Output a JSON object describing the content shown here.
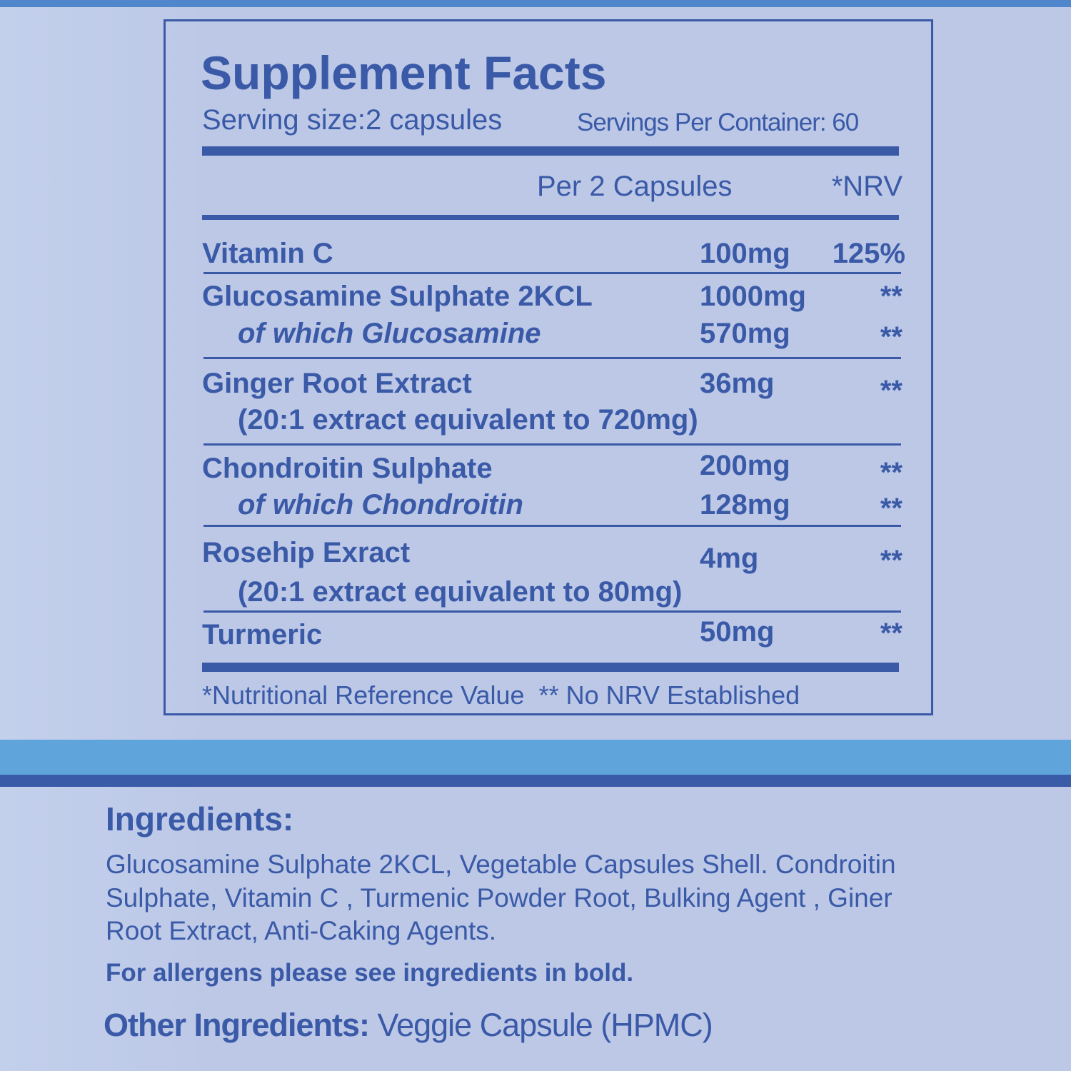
{
  "facts": {
    "title": "Supplement Facts",
    "serving_size": "Serving size:2 capsules",
    "servings_per_container": "Servings Per Container: 60",
    "col_amount": "Per 2 Capsules",
    "col_nrv": "*NRV",
    "rows": [
      {
        "name": "Vitamin C",
        "amount": "100mg",
        "nrv": "125%"
      },
      {
        "name": "Glucosamine Sulphate 2KCL",
        "amount": "1000mg",
        "nrv": "**"
      },
      {
        "name": "of which Glucosamine",
        "amount": "570mg",
        "nrv": "**"
      },
      {
        "name": "Ginger Root Extract",
        "amount": "36mg",
        "nrv": "**"
      },
      {
        "name": "(20:1 extract equivalent to 720mg)"
      },
      {
        "name": "Chondroitin Sulphate",
        "amount": "200mg",
        "nrv": "**"
      },
      {
        "name": "of which Chondroitin",
        "amount": "128mg",
        "nrv": "**"
      },
      {
        "name": "Rosehip Exract",
        "amount": "4mg",
        "nrv": "**"
      },
      {
        "name": "(20:1 extract equivalent to 80mg)"
      },
      {
        "name": "Turmeric",
        "amount": "50mg",
        "nrv": "**"
      }
    ],
    "footnote": "*Nutritional Reference Value  ** No NRV Established"
  },
  "ingredients": {
    "heading": "Ingredients:",
    "lines": [
      "Glucosamine Sulphate 2KCL, Vegetable Capsules Shell. Condroitin",
      "Sulphate, Vitamin C , Turmenic Powder Root, Bulking Agent , Giner",
      "Root Extract, Anti-Caking Agents."
    ],
    "allergens": "For allergens please see ingredients in bold.",
    "other_label": "Other Ingredients:",
    "other_value": " Veggie Capsule (HPMC)"
  },
  "colors": {
    "text": "#3a5aa8",
    "background": "#bcc8e6",
    "band_light": "#5fa5db",
    "band_dark": "#3a5ba8"
  }
}
